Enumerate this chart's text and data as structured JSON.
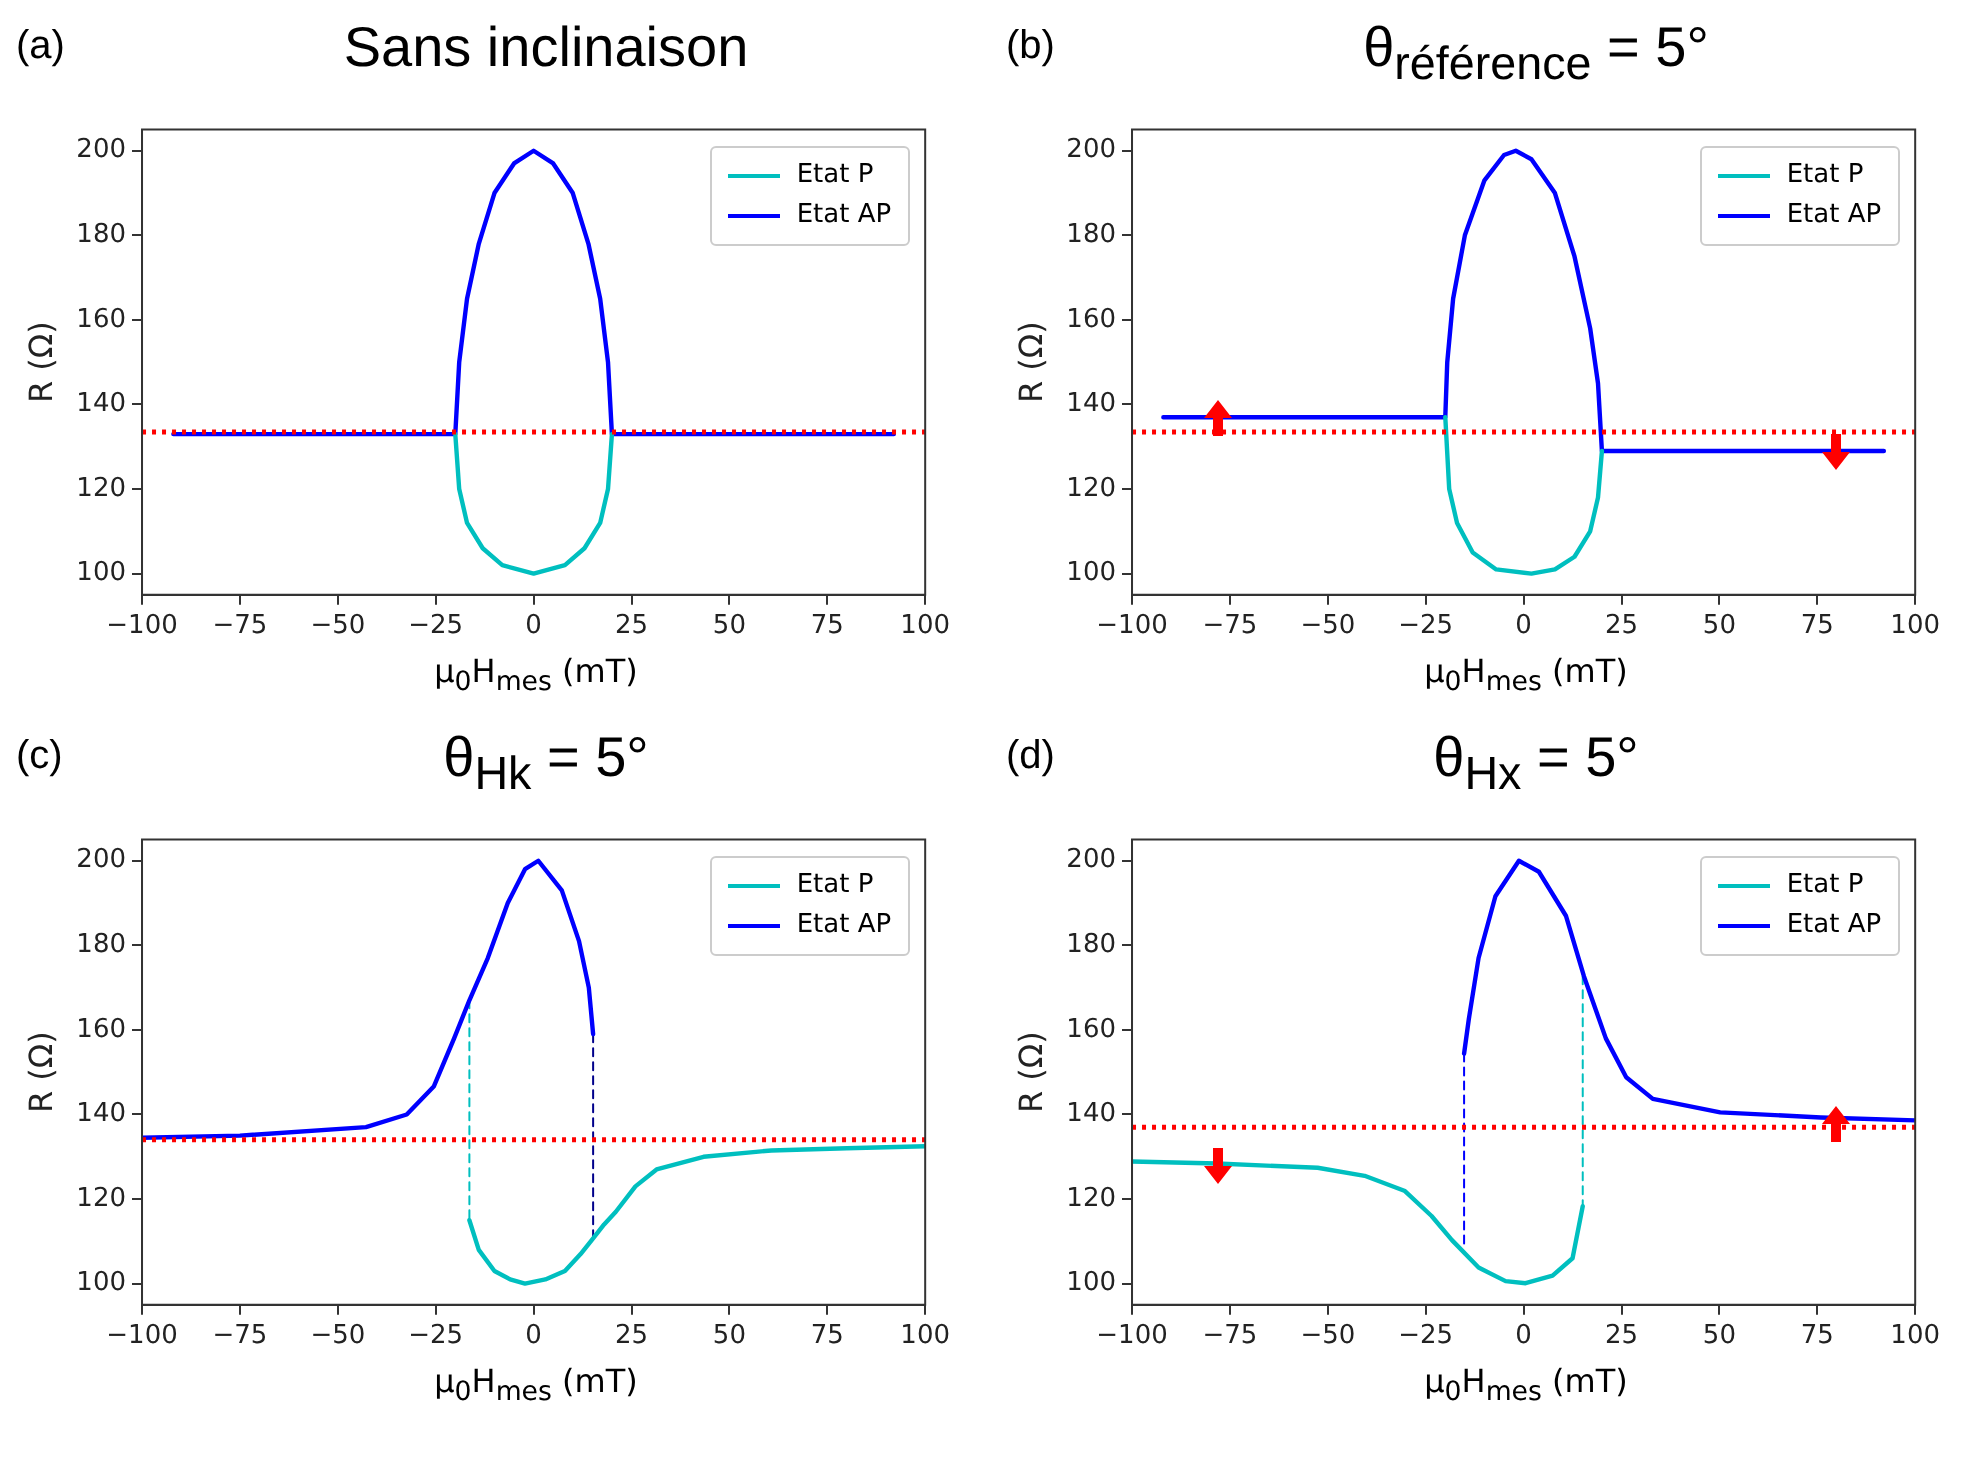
{
  "chart_data": [
    {
      "type": "line",
      "title": "Sans inclinaison",
      "annotations": [
        "(a)"
      ],
      "xlabel": "μ$_{0}$H$_{mes}$ (mT)",
      "ylabel": "R (Ω)",
      "xlim": [
        -100,
        100
      ],
      "ylim": [
        95,
        205
      ],
      "xticks": [
        -100,
        -75,
        -50,
        -25,
        0,
        25,
        50,
        75,
        100
      ],
      "yticks": [
        100,
        120,
        140,
        160,
        180,
        200
      ],
      "legend": "top right",
      "ref_lines": [
        {
          "axis": "y",
          "value": 133.5,
          "color": "#ff0000",
          "line_style": "dotted"
        }
      ],
      "series": [
        {
          "name": "Etat P",
          "color": "#00bfbf",
          "x": [
            -20,
            -19,
            -17,
            -13,
            -8,
            0,
            8,
            13,
            17,
            19,
            20
          ],
          "values": [
            133,
            120,
            112,
            106,
            102,
            100,
            102,
            106,
            112,
            120,
            133
          ]
        },
        {
          "name": "Etat AP",
          "color": "#0000ff",
          "x": [
            -92,
            -20,
            -19,
            -17,
            -14,
            -10,
            -5,
            0,
            5,
            10,
            14,
            17,
            19,
            20,
            92
          ],
          "values": [
            133,
            133,
            150,
            165,
            178,
            190,
            197,
            200,
            197,
            190,
            178,
            165,
            150,
            133,
            133
          ]
        }
      ]
    },
    {
      "type": "line",
      "title": "θ$_{référence}$ = 5°",
      "annotations": [
        "(b)"
      ],
      "xlabel": "μ$_{0}$H$_{mes}$ (mT)",
      "ylabel": "R (Ω)",
      "xlim": [
        -100,
        100
      ],
      "ylim": [
        95,
        205
      ],
      "xticks": [
        -100,
        -75,
        -50,
        -25,
        0,
        25,
        50,
        75,
        100
      ],
      "yticks": [
        100,
        120,
        140,
        160,
        180,
        200
      ],
      "legend": "top right",
      "ref_lines": [
        {
          "axis": "y",
          "value": 133.5,
          "color": "#ff0000",
          "line_style": "dotted"
        }
      ],
      "series": [
        {
          "name": "Etat P",
          "color": "#00bfbf",
          "x": [
            -20,
            -19,
            -17,
            -13,
            -7,
            2,
            8,
            13,
            17,
            19,
            20
          ],
          "values": [
            137,
            120,
            112,
            105,
            101,
            100,
            101,
            104,
            110,
            118,
            129
          ]
        },
        {
          "name": "Etat AP",
          "color": "#0000ff",
          "x": [
            -92,
            -20,
            -19.5,
            -18,
            -15,
            -10,
            -5,
            -2,
            2,
            8,
            13,
            17,
            19,
            20,
            92
          ],
          "values": [
            137,
            137,
            150,
            165,
            180,
            193,
            199,
            200,
            198,
            190,
            175,
            158,
            145,
            129,
            129
          ]
        }
      ]
    },
    {
      "type": "line",
      "title": "θ$_{Hk}$ = 5°",
      "annotations": [
        "(c)"
      ],
      "xlabel": "μ$_{0}$H$_{mes}$ (mT)",
      "ylabel": "R (Ω)",
      "xlim": [
        -100,
        100
      ],
      "ylim": [
        95,
        205
      ],
      "xticks": [
        -100,
        -75,
        -50,
        -25,
        0,
        25,
        50,
        75,
        100
      ],
      "yticks": [
        100,
        120,
        140,
        160,
        180,
        200
      ],
      "legend": "top right",
      "ref_lines": [
        {
          "axis": "y",
          "value": 134,
          "color": "#ff0000",
          "line_style": "dotted"
        }
      ],
      "series": [
        {
          "name": "Etat P",
          "color": "#00bfbf",
          "x": [
            -16.4,
            -14,
            -10,
            -6,
            -2.2,
            3,
            8,
            12,
            15.2,
            18,
            21,
            26,
            31.4,
            43.4,
            60.7,
            80,
            100
          ],
          "values": [
            115,
            108,
            103,
            101,
            100,
            101,
            103,
            107,
            110.7,
            114,
            117,
            123,
            127,
            130,
            131.5,
            132,
            132.5
          ]
        },
        {
          "name": "Etat AP",
          "color": "#0000ff",
          "x": [
            -100,
            -75,
            -42.8,
            -32.4,
            -25.5,
            -20.3,
            -16.4,
            -11.7,
            -6.6,
            -2.2,
            1.2,
            7.2,
            11.6,
            14.1,
            15.2
          ],
          "values": [
            134.5,
            135,
            137,
            140,
            146.6,
            158,
            167,
            177,
            190,
            198,
            200,
            193,
            181,
            170,
            159
          ]
        },
        {
          "color": "#00bfbf",
          "line_style": "dashed",
          "x": [
            -16.4,
            -16.4
          ],
          "values": [
            167,
            115
          ]
        },
        {
          "color": "#00008b",
          "line_style": "dashed",
          "x": [
            15.2,
            15.2
          ],
          "values": [
            159,
            110.7
          ]
        }
      ]
    },
    {
      "type": "line",
      "title": "θ$_{Hx}$ = 5°",
      "annotations": [
        "(d)"
      ],
      "xlabel": "μ$_{0}$H$_{mes}$ (mT)",
      "ylabel": "R (Ω)",
      "xlim": [
        -100,
        100
      ],
      "ylim": [
        95,
        205
      ],
      "xticks": [
        -100,
        -75,
        -50,
        -25,
        0,
        25,
        50,
        75,
        100
      ],
      "yticks": [
        100,
        120,
        140,
        160,
        180,
        200
      ],
      "legend": "top right",
      "ref_lines": [
        {
          "axis": "y",
          "value": 137,
          "color": "#ff0000",
          "line_style": "dotted"
        }
      ],
      "series": [
        {
          "name": "Etat P",
          "color": "#00bfbf",
          "x": [
            -100,
            -78.3,
            -52.6,
            -40.6,
            -30.3,
            -23.5,
            -18.3,
            -11.5,
            -4.6,
            0.5,
            7.4,
            12.5,
            15.1
          ],
          "values": [
            128.9,
            128.4,
            127.4,
            125.5,
            121.9,
            116,
            110.3,
            103.8,
            100.6,
            100.1,
            101.9,
            106,
            118.3
          ]
        },
        {
          "name": "Etat AP",
          "color": "#0000ff",
          "x": [
            -15.2,
            -14,
            -11.5,
            -7.2,
            -1.2,
            3.9,
            10.8,
            15.4,
            21,
            26.2,
            33,
            50.2,
            75.9,
            100
          ],
          "values": [
            154.4,
            162.5,
            177,
            191.6,
            200,
            197.4,
            187,
            172.7,
            158,
            148.8,
            143.7,
            140.5,
            139.3,
            138.6
          ]
        },
        {
          "color": "#0000ff",
          "line_style": "dashed",
          "x": [
            -15.2,
            -15.2
          ],
          "values": [
            154.4,
            109.1
          ]
        },
        {
          "color": "#00bfbf",
          "line_style": "dashed",
          "x": [
            15.1,
            15.1
          ],
          "values": [
            172.7,
            118.3
          ]
        }
      ]
    }
  ]
}
